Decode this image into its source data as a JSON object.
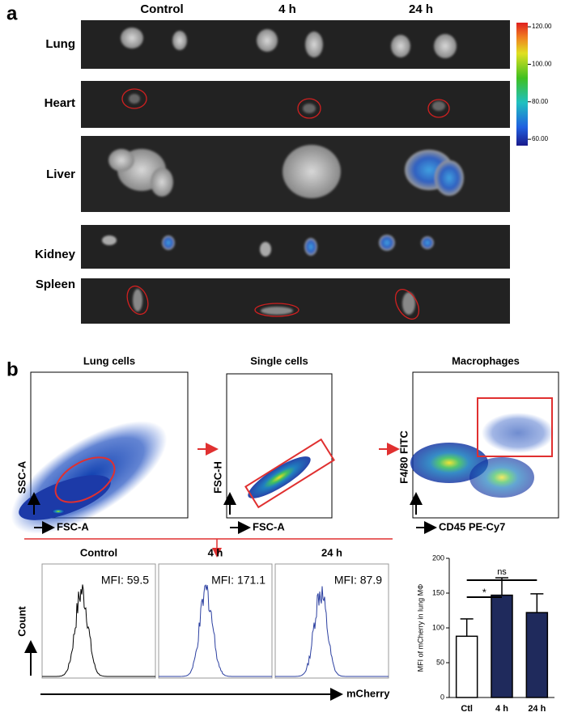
{
  "panel_a": {
    "label": "a",
    "columns": [
      "Control",
      "4 h",
      "24 h"
    ],
    "rows": [
      "Lung",
      "Heart",
      "Liver",
      "Kidney",
      "Spleen"
    ],
    "colorbar": {
      "lim": [
        56.6,
        122.2
      ],
      "ticks": [
        {
          "value": 120,
          "label": "120.00"
        },
        {
          "value": 100,
          "label": "100.00"
        },
        {
          "value": 80,
          "label": "80.00"
        },
        {
          "value": 60,
          "label": "60.00"
        }
      ]
    }
  },
  "panel_b": {
    "label": "b",
    "gating": [
      {
        "title": "Lung cells",
        "x_label": "FSC-A",
        "y_label": "SSC-A"
      },
      {
        "title": "Single cells",
        "x_label": "FSC-A",
        "y_label": "FSC-H"
      },
      {
        "title": "Macrophages",
        "x_label": "CD45 PE-Cy7",
        "y_label": "F4/80 FITC"
      }
    ],
    "histograms": {
      "panels": [
        {
          "title": "Control",
          "mfi": "MFI: 59.5"
        },
        {
          "title": "4 h",
          "mfi": "MFI: 171.1"
        },
        {
          "title": "24 h",
          "mfi": "MFI: 87.9"
        }
      ],
      "y_label": "Count",
      "x_label": "mCherry"
    }
  },
  "chart_data": {
    "type": "bar",
    "y_label": "MFI of mCherry in lung MΦ",
    "categories": [
      "Ctl",
      "4 h",
      "24 h"
    ],
    "values": [
      88,
      147,
      122
    ],
    "errors": [
      25,
      25,
      27
    ],
    "colors": [
      "#ffffff",
      "#1f2a5c",
      "#1f2a5c"
    ],
    "ylim": [
      0,
      200
    ],
    "yticks": [
      0,
      50,
      100,
      150,
      200
    ],
    "annotations": [
      "ns",
      "*"
    ]
  }
}
